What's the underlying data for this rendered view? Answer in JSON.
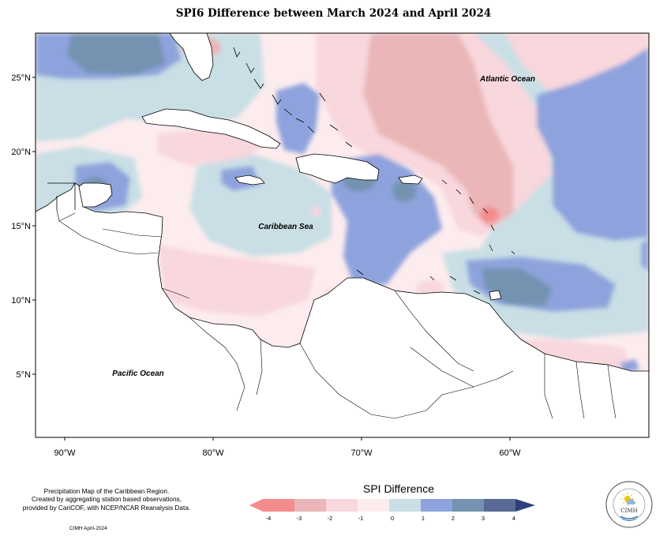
{
  "title": "SPI6 Difference between March 2024 and April 2024",
  "map": {
    "lat_ticks": [
      "25°N",
      "20°N",
      "15°N",
      "10°N",
      "5°N"
    ],
    "lon_ticks": [
      "90°W",
      "80°W",
      "70°W",
      "60°W"
    ],
    "labels": {
      "atlantic": "Atlantic Ocean",
      "caribbean": "Caribbean Sea",
      "pacific": "Pacific Ocean"
    }
  },
  "legend": {
    "title": "SPI Difference",
    "ticks": [
      "-4",
      "-3",
      "-2",
      "-1",
      "0",
      "1",
      "2",
      "3",
      "4"
    ],
    "colors": [
      "#f58c8c",
      "#eab6b8",
      "#f8d7dd",
      "#fdecee",
      "#c9dfe5",
      "#8ea3dd",
      "#7393b0",
      "#5a6a96"
    ]
  },
  "credits": {
    "line1": "Precipitation Map of the Caribbean Region.",
    "line2": "Created by aggregating station based observations,",
    "line3": "provided by CariCOF, with NCEP/NCAR Reanalysis Data.",
    "date": "CIMH April-2024"
  },
  "logo": {
    "text": "CIMH",
    "icon": "sun-icon"
  }
}
